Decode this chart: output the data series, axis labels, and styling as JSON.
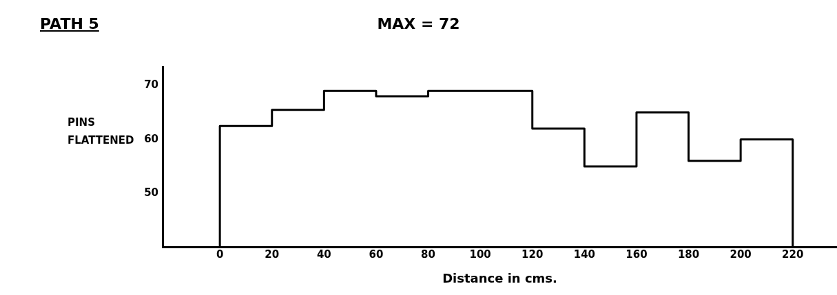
{
  "chart_data": {
    "type": "histogram",
    "title": "PATH 5",
    "subtitle": "MAX = 72",
    "xlabel": "Distance in cms.",
    "ylabel": "PINS FLATTENED",
    "bins": [
      0,
      20,
      40,
      60,
      80,
      100,
      120,
      140,
      160,
      180,
      200,
      220
    ],
    "values": [
      62.5,
      65.5,
      69,
      68,
      69,
      69,
      62,
      55,
      65,
      56,
      60
    ],
    "color": "#000000",
    "xlim": [
      -22,
      237
    ],
    "xticks": [
      0,
      20,
      40,
      60,
      80,
      100,
      120,
      140,
      160,
      180,
      200,
      220
    ],
    "ylim": [
      40,
      73.5
    ],
    "yticks": [
      50,
      60,
      70
    ],
    "grid": false,
    "legend": false
  }
}
